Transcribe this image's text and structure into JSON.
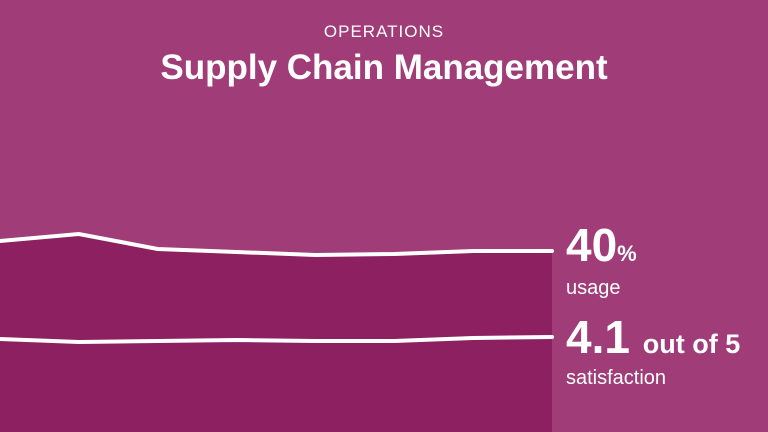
{
  "header": {
    "eyebrow": "OPERATIONS",
    "title": "Supply Chain Management"
  },
  "colors": {
    "background": "#a03c78",
    "area": "#8c2060",
    "line": "#ffffff"
  },
  "chart_data": {
    "type": "line",
    "x": [
      1,
      2,
      3,
      4,
      5,
      6,
      7,
      8
    ],
    "series": [
      {
        "name": "usage",
        "values": [
          50,
          57,
          42,
          39,
          36,
          37,
          40,
          40
        ],
        "ylim": [
          0,
          60
        ]
      },
      {
        "name": "satisfaction",
        "values": [
          4.0,
          3.85,
          3.9,
          3.95,
          3.9,
          3.9,
          4.05,
          4.1
        ],
        "ylim": [
          0,
          5
        ]
      }
    ]
  },
  "stats": [
    {
      "value": "40",
      "unit": "%",
      "label": "usage"
    },
    {
      "value": "4.1",
      "unit": "out of 5",
      "label": "satisfaction"
    }
  ]
}
